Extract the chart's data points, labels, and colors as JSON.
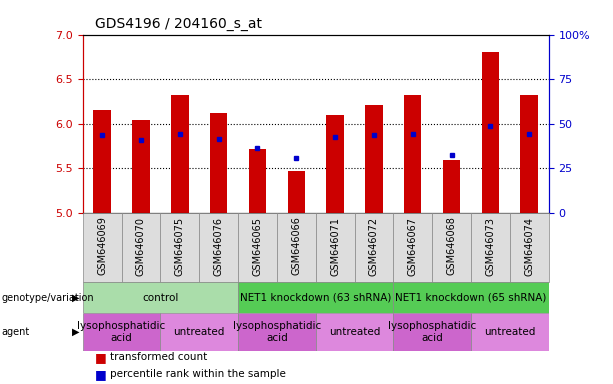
{
  "title": "GDS4196 / 204160_s_at",
  "samples": [
    "GSM646069",
    "GSM646070",
    "GSM646075",
    "GSM646076",
    "GSM646065",
    "GSM646066",
    "GSM646071",
    "GSM646072",
    "GSM646067",
    "GSM646068",
    "GSM646073",
    "GSM646074"
  ],
  "bar_values": [
    6.15,
    6.04,
    6.32,
    6.12,
    5.72,
    5.47,
    6.1,
    6.21,
    6.32,
    5.6,
    6.8,
    6.32
  ],
  "bar_base": 5.0,
  "blue_dot_values": [
    5.87,
    5.82,
    5.89,
    5.83,
    5.73,
    5.62,
    5.85,
    5.87,
    5.89,
    5.65,
    5.98,
    5.89
  ],
  "ylim": [
    5.0,
    7.0
  ],
  "yticks_left": [
    5.0,
    5.5,
    6.0,
    6.5,
    7.0
  ],
  "yticks_right": [
    0,
    25,
    50,
    75,
    100
  ],
  "bar_color": "#cc0000",
  "dot_color": "#0000cc",
  "genotype_groups": [
    {
      "label": "control",
      "start": 0,
      "end": 4,
      "color": "#aaddaa"
    },
    {
      "label": "NET1 knockdown (63 shRNA)",
      "start": 4,
      "end": 8,
      "color": "#55cc55"
    },
    {
      "label": "NET1 knockdown (65 shRNA)",
      "start": 8,
      "end": 12,
      "color": "#55cc55"
    }
  ],
  "agent_groups": [
    {
      "label": "lysophosphatidic\nacid",
      "start": 0,
      "end": 2,
      "color": "#cc66cc"
    },
    {
      "label": "untreated",
      "start": 2,
      "end": 4,
      "color": "#dd88dd"
    },
    {
      "label": "lysophosphatidic\nacid",
      "start": 4,
      "end": 6,
      "color": "#cc66cc"
    },
    {
      "label": "untreated",
      "start": 6,
      "end": 8,
      "color": "#dd88dd"
    },
    {
      "label": "lysophosphatidic\nacid",
      "start": 8,
      "end": 10,
      "color": "#cc66cc"
    },
    {
      "label": "untreated",
      "start": 10,
      "end": 12,
      "color": "#dd88dd"
    }
  ],
  "legend_items": [
    {
      "label": "transformed count",
      "color": "#cc0000"
    },
    {
      "label": "percentile rank within the sample",
      "color": "#0000cc"
    }
  ],
  "bar_width": 0.45,
  "left_axis_color": "#cc0000",
  "right_axis_color": "#0000cc",
  "plot_bg": "#ffffff",
  "outer_bg": "#ffffff",
  "title_fontsize": 10,
  "tick_fontsize": 7,
  "annot_fontsize": 7.5
}
